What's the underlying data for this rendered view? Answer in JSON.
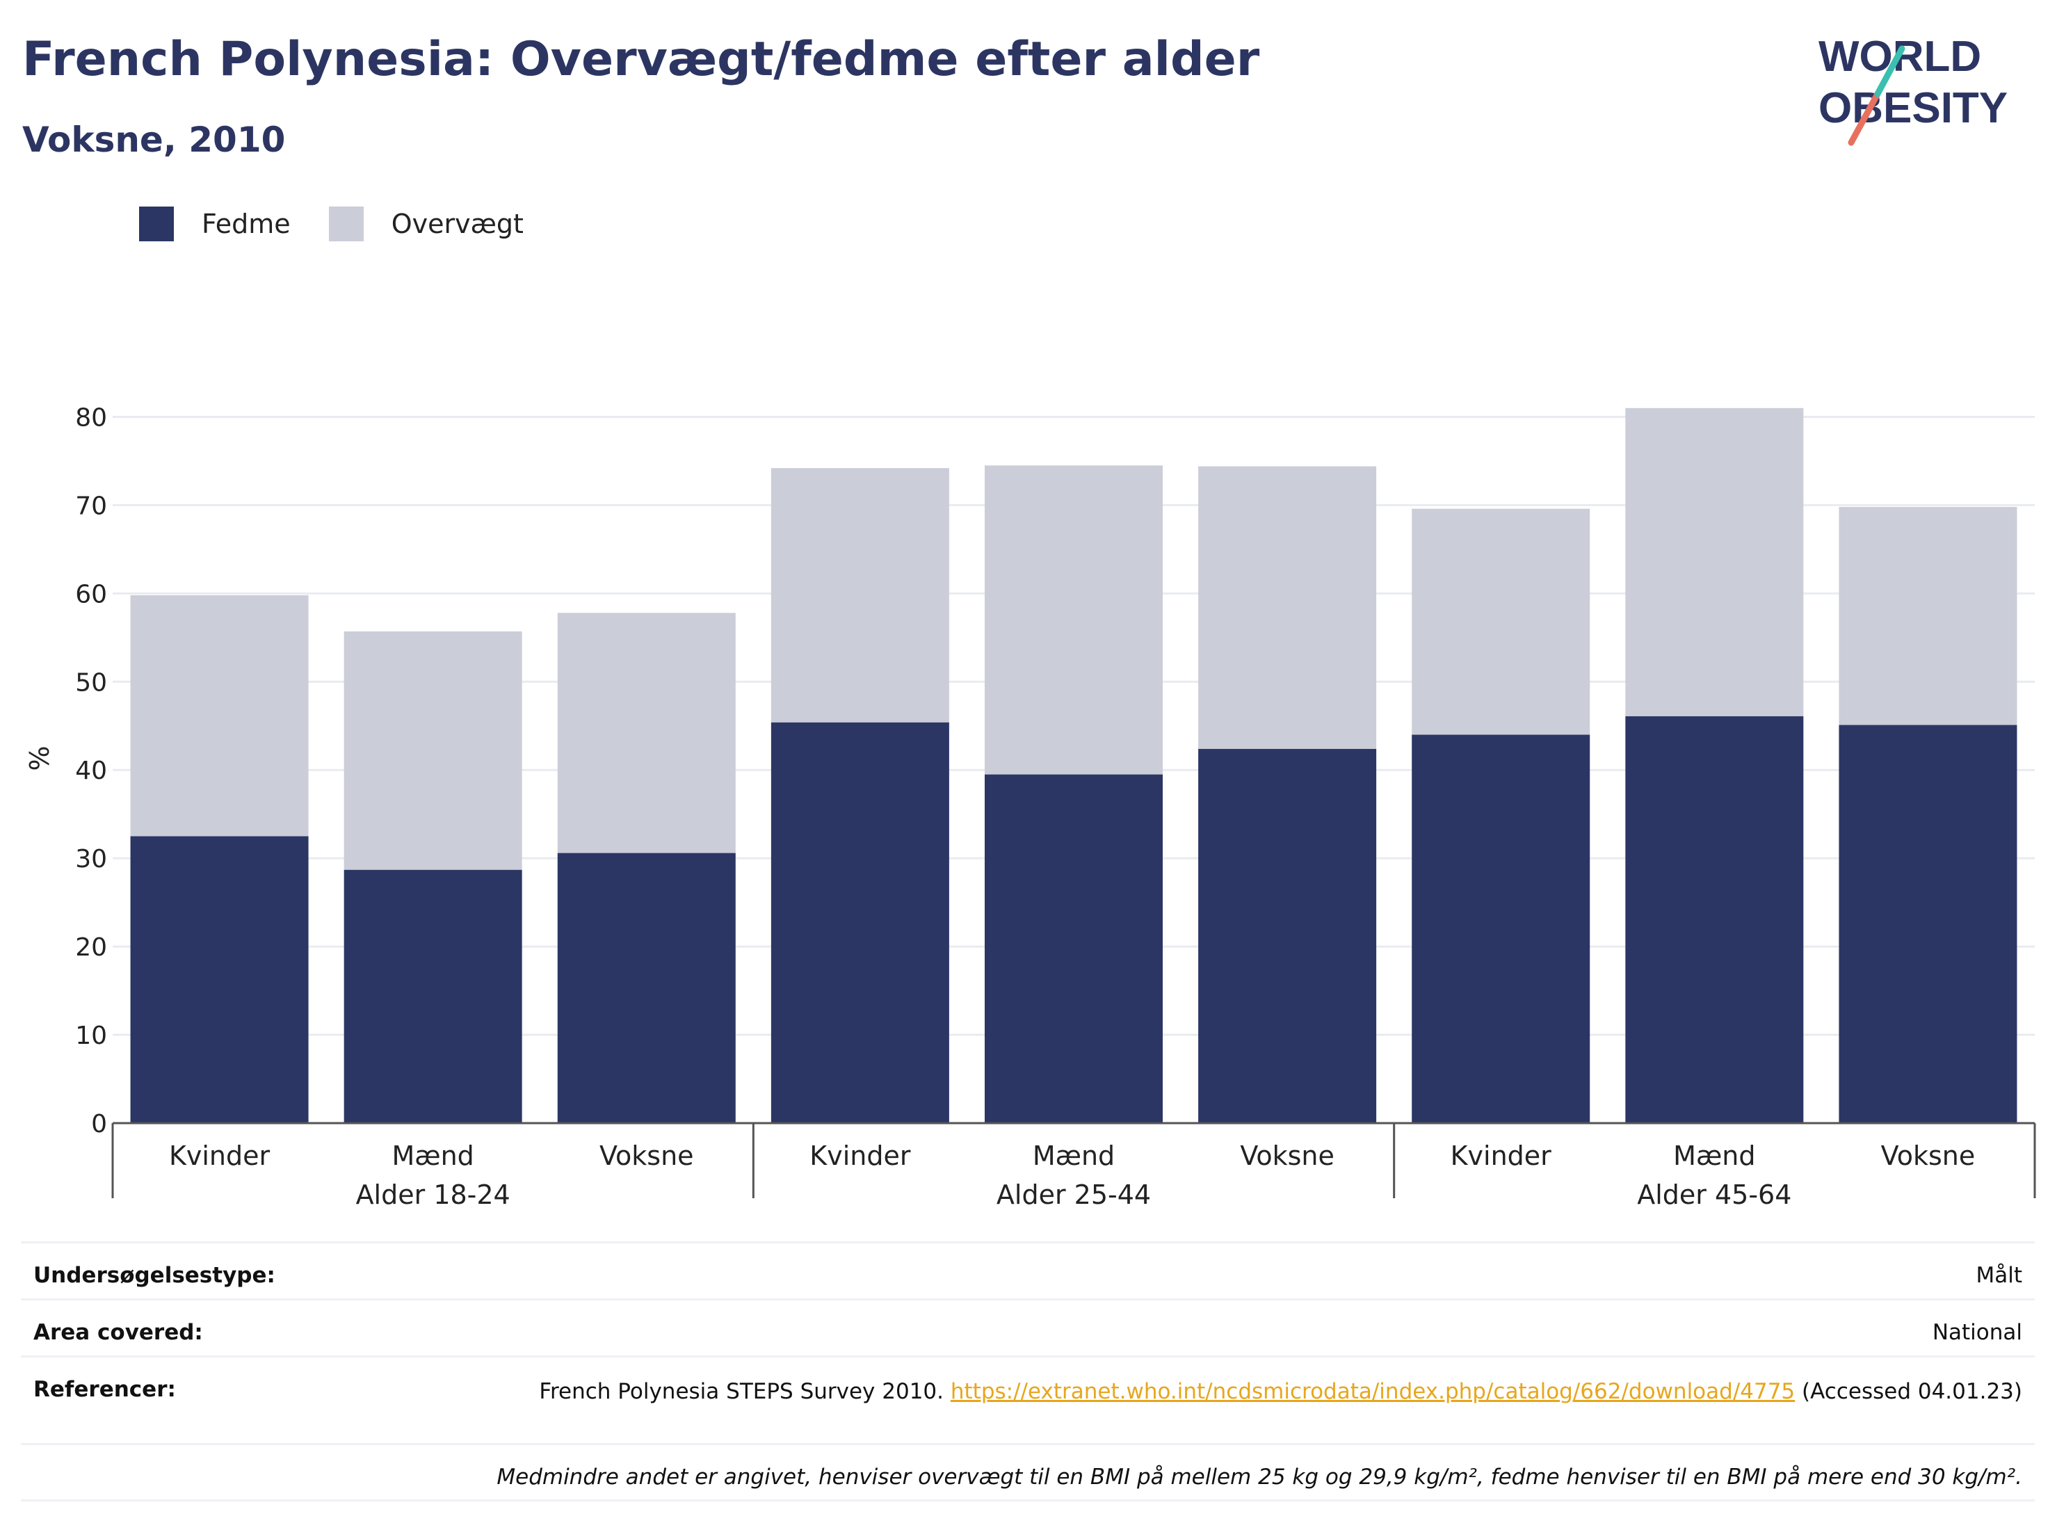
{
  "header": {
    "title": "French Polynesia: Overvægt/fedme efter alder",
    "subtitle": "Voksne, 2010"
  },
  "logo": {
    "line1": "WORLD",
    "line2": "OBESITY"
  },
  "legend": [
    {
      "label": "Fedme",
      "color": "#2b3664"
    },
    {
      "label": "Overvægt",
      "color": "#cbcdd8"
    }
  ],
  "chart_data": {
    "type": "bar",
    "stacked": true,
    "ylabel": "%",
    "ylim": [
      0,
      85
    ],
    "yticks": [
      0,
      10,
      20,
      30,
      40,
      50,
      60,
      70,
      80
    ],
    "grid": true,
    "legend_position": "top-left",
    "categories": [
      "Kvinder",
      "Mænd",
      "Voksne",
      "Kvinder",
      "Mænd",
      "Voksne",
      "Kvinder",
      "Mænd",
      "Voksne"
    ],
    "groups": [
      {
        "label": "Alder 18-24",
        "categories": [
          "Kvinder",
          "Mænd",
          "Voksne"
        ]
      },
      {
        "label": "Alder 25-44",
        "categories": [
          "Kvinder",
          "Mænd",
          "Voksne"
        ]
      },
      {
        "label": "Alder 45-64",
        "categories": [
          "Kvinder",
          "Mænd",
          "Voksne"
        ]
      }
    ],
    "series": [
      {
        "name": "Fedme",
        "color": "#2b3664",
        "values": [
          32.5,
          28.7,
          30.6,
          45.4,
          39.5,
          42.4,
          44.0,
          46.1,
          45.1
        ]
      },
      {
        "name": "Overvægt",
        "color": "#cbcdd8",
        "values": [
          27.3,
          27.0,
          27.2,
          28.8,
          35.0,
          32.0,
          25.6,
          34.9,
          24.7
        ]
      }
    ]
  },
  "footer": {
    "survey_type_label": "Undersøgelsestype:",
    "survey_type_value": "Målt",
    "area_label": "Area covered:",
    "area_value": "National",
    "references_label": "Referencer:",
    "references_text": "French Polynesia STEPS Survey 2010.",
    "references_link": "https://extranet.who.int/ncdsmicrodata/index.php/catalog/662/download/4775",
    "references_accessed": "(Accessed 04.01.23)",
    "note": "Medmindre andet er angivet, henviser overvægt til en BMI på mellem 25 kg og 29,9 kg/m², fedme henviser til en BMI på mere end 30 kg/m²."
  }
}
